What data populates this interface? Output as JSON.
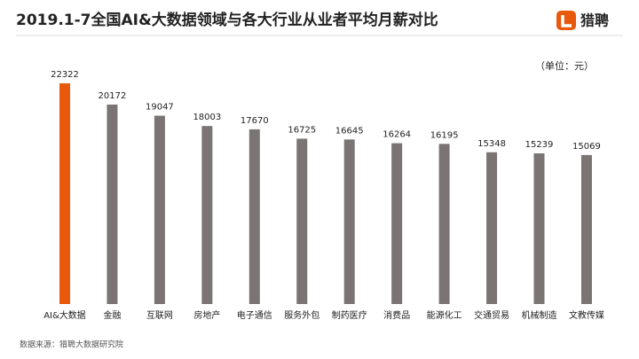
{
  "chart_data": {
    "type": "bar",
    "title": "2019.1-7全国AI&大数据领域与各大行业从业者平均月薪对比",
    "unit_note": "（单位：元）",
    "source": "数据来源：猎聘大数据研究院",
    "logo": "猎聘",
    "categories": [
      "AI&大数据",
      "金融",
      "互联网",
      "房地产",
      "电子通信",
      "服务外包",
      "制药医疗",
      "消费品",
      "能源化工",
      "交通贸易",
      "机械制造",
      "文教传媒"
    ],
    "values": [
      22322,
      20172,
      19047,
      18003,
      17670,
      16725,
      16645,
      16264,
      16195,
      15348,
      15239,
      15069
    ],
    "colors": [
      "#e8590c",
      "#7a7472",
      "#7a7472",
      "#7a7472",
      "#7a7472",
      "#7a7472",
      "#7a7472",
      "#7a7472",
      "#7a7472",
      "#7a7472",
      "#7a7472",
      "#7a7472"
    ]
  }
}
